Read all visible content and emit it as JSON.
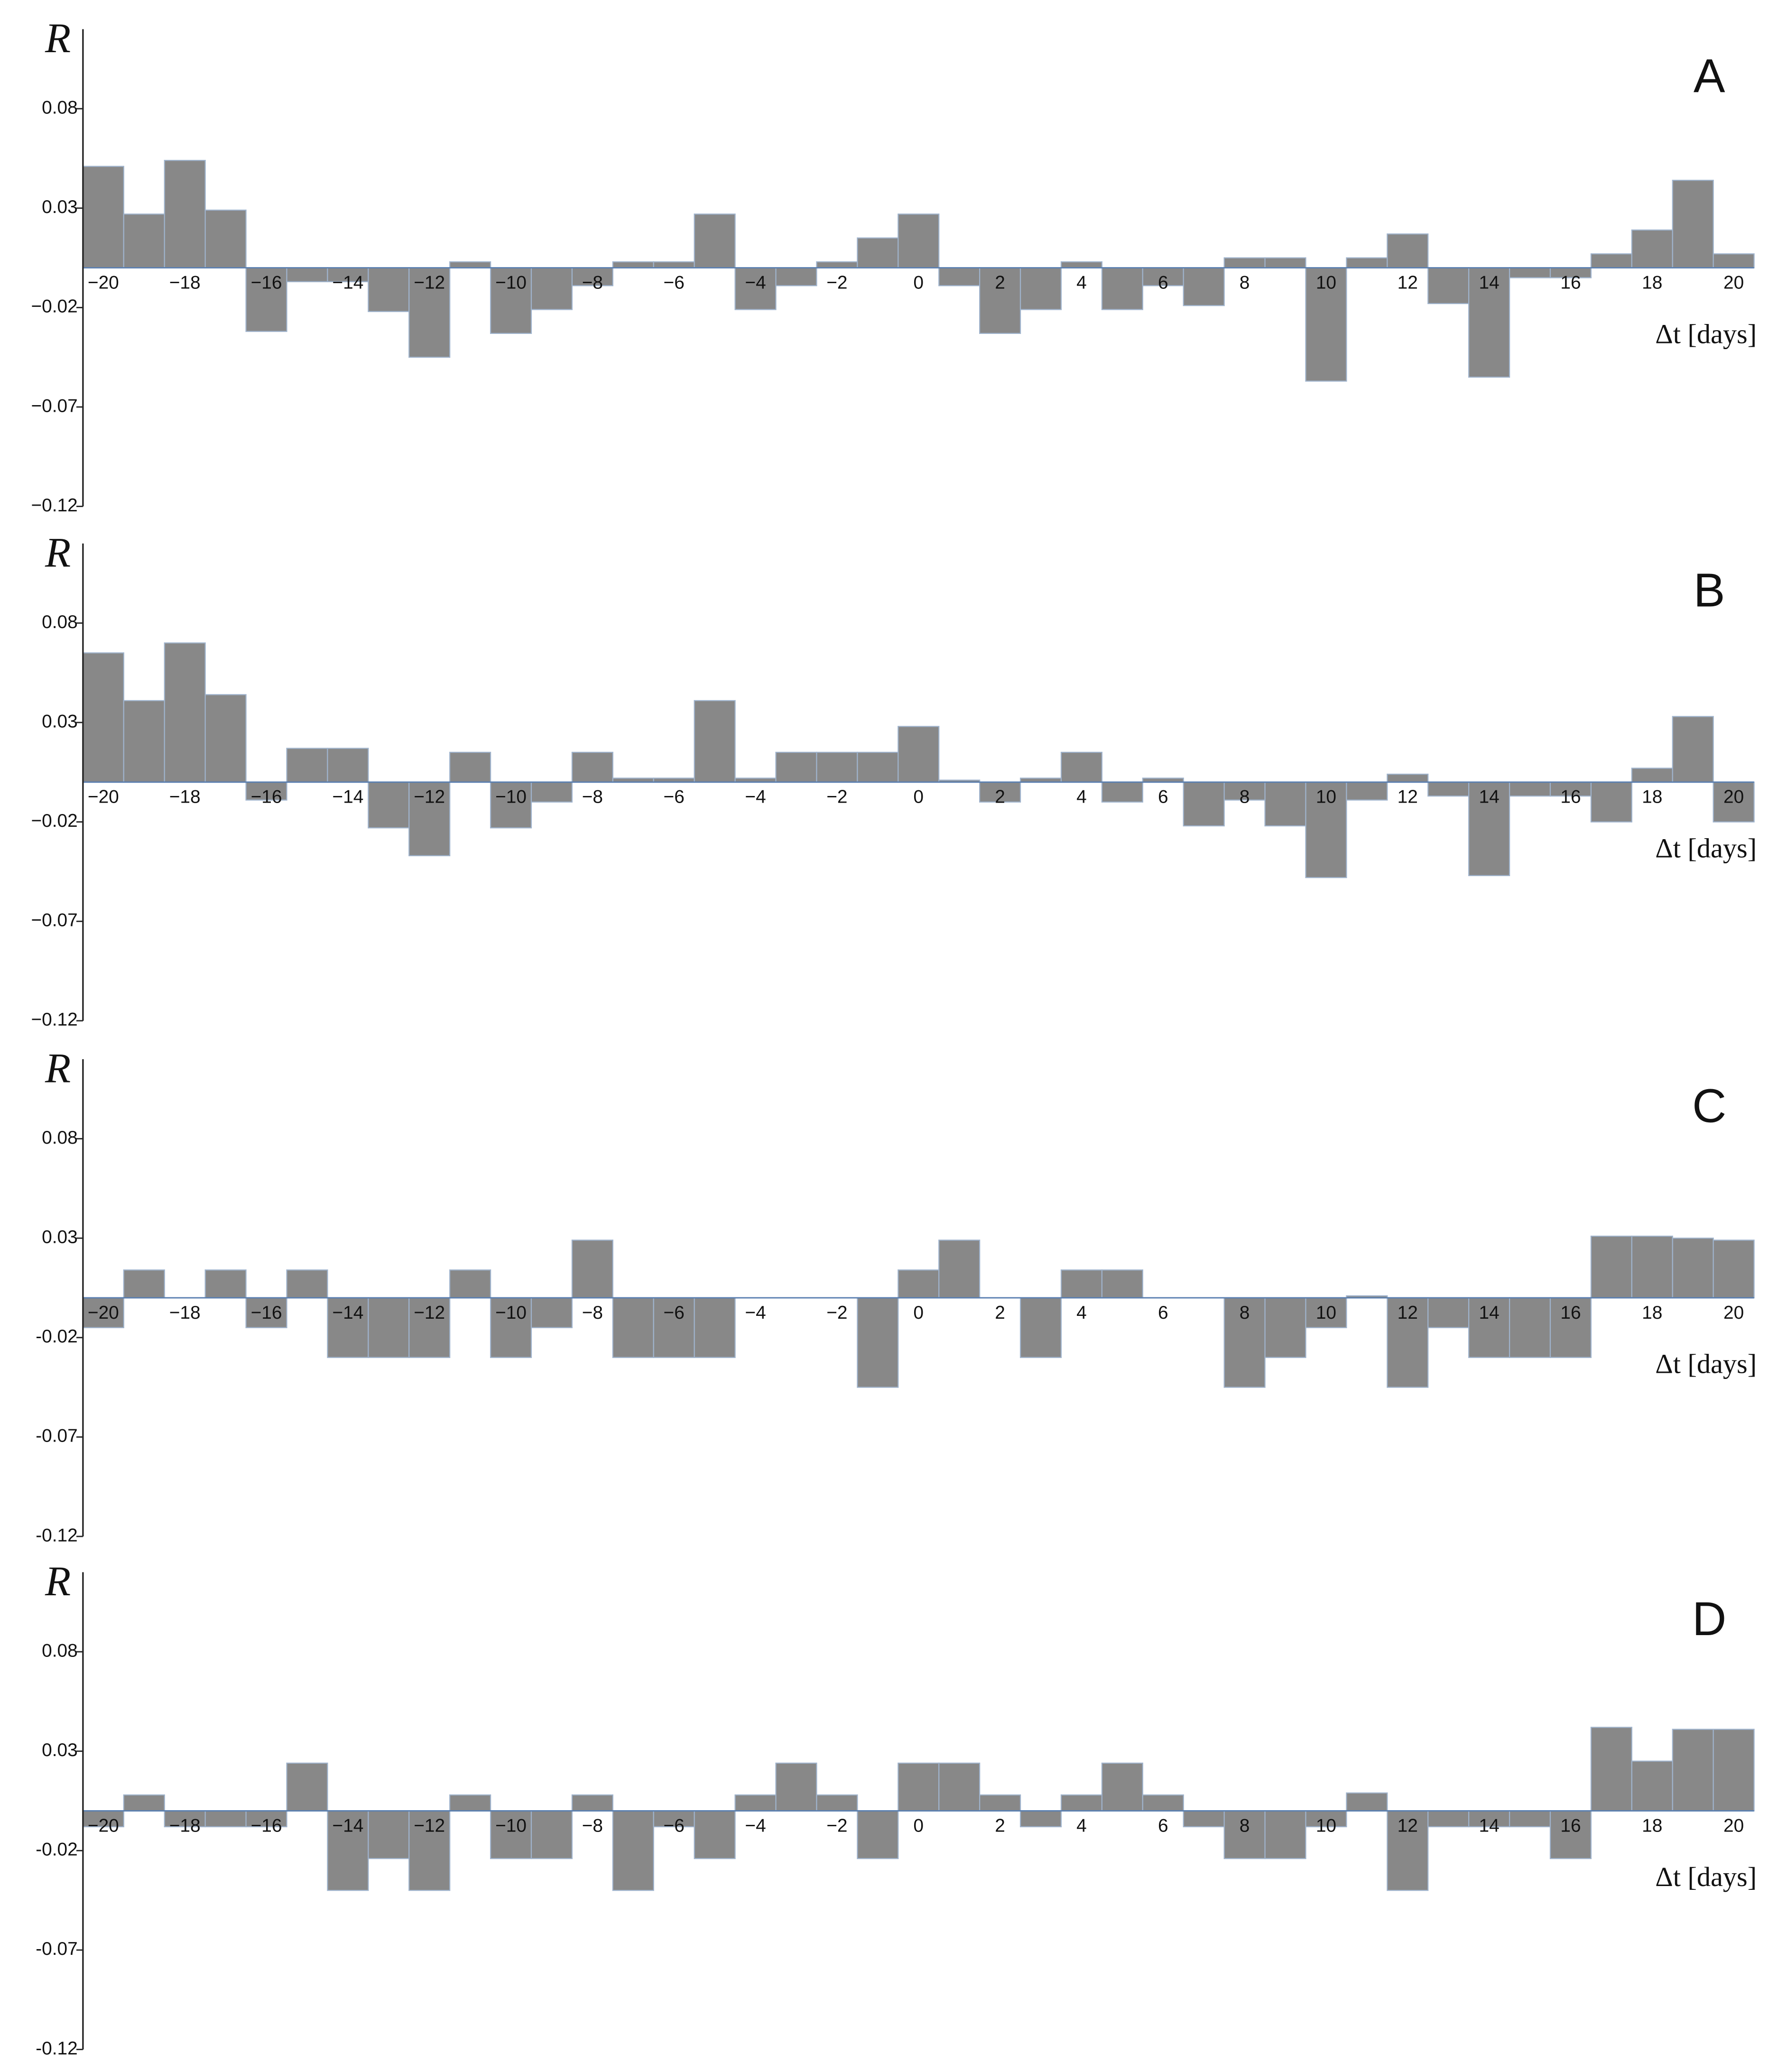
{
  "chart_data": [
    {
      "type": "bar",
      "panel_label": "A",
      "y_label": "R",
      "x_label": "Δt [days]",
      "color": "#888888",
      "x": [
        -20,
        -19,
        -18,
        -17,
        -16,
        -15,
        -14,
        -13,
        -12,
        -11,
        -10,
        -9,
        -8,
        -7,
        -6,
        -5,
        -4,
        -3,
        -2,
        -1,
        0,
        1,
        2,
        3,
        4,
        5,
        6,
        7,
        8,
        9,
        10,
        11,
        12,
        13,
        14,
        15,
        16,
        17,
        18,
        19,
        20
      ],
      "values": [
        0.051,
        0.027,
        0.054,
        0.029,
        -0.032,
        -0.007,
        -0.007,
        -0.022,
        -0.045,
        0.003,
        -0.033,
        -0.021,
        -0.009,
        0.003,
        0.003,
        0.027,
        -0.021,
        -0.009,
        0.003,
        0.015,
        0.027,
        -0.009,
        -0.033,
        -0.021,
        0.003,
        -0.021,
        -0.009,
        -0.019,
        0.005,
        0.005,
        -0.057,
        0.005,
        0.017,
        -0.018,
        -0.055,
        -0.005,
        -0.005,
        0.007,
        0.019,
        0.044,
        0.007
      ],
      "xlim": [
        -20.5,
        20.5
      ],
      "xticks": [
        {
          "value": -20,
          "label": "−20"
        },
        {
          "value": -18,
          "label": "−18"
        },
        {
          "value": -16,
          "label": "−16"
        },
        {
          "value": -14,
          "label": "−14"
        },
        {
          "value": -12,
          "label": "−12"
        },
        {
          "value": -10,
          "label": "−10"
        },
        {
          "value": -8,
          "label": "−8"
        },
        {
          "value": -6,
          "label": "−6"
        },
        {
          "value": -4,
          "label": "−4"
        },
        {
          "value": -2,
          "label": "−2"
        },
        0,
        2,
        4,
        6,
        8,
        10,
        12,
        14,
        16,
        18,
        20
      ],
      "ylim": [
        -0.12,
        0.12
      ],
      "yticks": [
        0.08,
        0.03,
        {
          "value": -0.02,
          "label": "−0.02"
        },
        {
          "value": -0.07,
          "label": "−0.07"
        },
        {
          "value": -0.12,
          "label": "−0.12"
        }
      ]
    },
    {
      "type": "bar",
      "panel_label": "B",
      "y_label": "R",
      "x_label": "Δt [days]",
      "color": "#888888",
      "x": [
        -20,
        -19,
        -18,
        -17,
        -16,
        -15,
        -14,
        -13,
        -12,
        -11,
        -10,
        -9,
        -8,
        -7,
        -6,
        -5,
        -4,
        -3,
        -2,
        -1,
        0,
        1,
        2,
        3,
        4,
        5,
        6,
        7,
        8,
        9,
        10,
        11,
        12,
        13,
        14,
        15,
        16,
        17,
        18,
        19,
        20
      ],
      "values": [
        0.065,
        0.041,
        0.07,
        0.044,
        -0.009,
        0.017,
        0.017,
        -0.023,
        -0.037,
        0.015,
        -0.023,
        -0.01,
        0.015,
        0.002,
        0.002,
        0.041,
        0.002,
        0.015,
        0.015,
        0.015,
        0.028,
        0.001,
        -0.01,
        0.002,
        0.015,
        -0.01,
        0.002,
        -0.022,
        -0.009,
        -0.022,
        -0.048,
        -0.009,
        0.004,
        -0.007,
        -0.047,
        -0.007,
        -0.007,
        -0.02,
        0.007,
        0.033,
        -0.02
      ],
      "xlim": [
        -20.5,
        20.5
      ],
      "xticks": [
        {
          "value": -20,
          "label": "−20"
        },
        {
          "value": -18,
          "label": "−18"
        },
        {
          "value": -16,
          "label": "−16"
        },
        {
          "value": -14,
          "label": "−14"
        },
        {
          "value": -12,
          "label": "−12"
        },
        {
          "value": -10,
          "label": "−10"
        },
        {
          "value": -8,
          "label": "−8"
        },
        {
          "value": -6,
          "label": "−6"
        },
        {
          "value": -4,
          "label": "−4"
        },
        {
          "value": -2,
          "label": "−2"
        },
        0,
        2,
        4,
        6,
        8,
        10,
        12,
        14,
        16,
        18,
        20
      ],
      "ylim": [
        -0.12,
        0.12
      ],
      "yticks": [
        0.08,
        0.03,
        {
          "value": -0.02,
          "label": "−0.02"
        },
        {
          "value": -0.07,
          "label": "−0.07"
        },
        {
          "value": -0.12,
          "label": "−0.12"
        }
      ]
    },
    {
      "type": "bar",
      "panel_label": "C",
      "y_label": "R",
      "x_label": "Δt [days]",
      "color": "#888888",
      "x": [
        -20,
        -19,
        -18,
        -17,
        -16,
        -15,
        -14,
        -13,
        -12,
        -11,
        -10,
        -9,
        -8,
        -7,
        -6,
        -5,
        -4,
        -3,
        -2,
        -1,
        0,
        1,
        2,
        3,
        4,
        5,
        6,
        7,
        8,
        9,
        10,
        11,
        12,
        13,
        14,
        15,
        16,
        17,
        18,
        19,
        20
      ],
      "values": [
        -0.015,
        0.014,
        0,
        0.014,
        -0.015,
        0.014,
        -0.03,
        -0.03,
        -0.03,
        0.014,
        -0.03,
        -0.015,
        0.029,
        -0.03,
        -0.03,
        -0.03,
        0,
        0,
        0,
        -0.045,
        0.014,
        0.029,
        0,
        -0.03,
        0.014,
        0.014,
        0,
        0,
        -0.045,
        -0.03,
        -0.015,
        0.001,
        -0.045,
        -0.015,
        -0.03,
        -0.03,
        -0.03,
        0.031,
        0.031,
        0.03,
        0.029
      ],
      "xlim": [
        -20.5,
        20.5
      ],
      "xticks": [
        {
          "value": -20,
          "label": "−20"
        },
        {
          "value": -18,
          "label": "−18"
        },
        {
          "value": -16,
          "label": "−16"
        },
        {
          "value": -14,
          "label": "−14"
        },
        {
          "value": -12,
          "label": "−12"
        },
        {
          "value": -10,
          "label": "−10"
        },
        {
          "value": -8,
          "label": "−8"
        },
        {
          "value": -6,
          "label": "−6"
        },
        {
          "value": -4,
          "label": "−4"
        },
        {
          "value": -2,
          "label": "−2"
        },
        0,
        2,
        4,
        6,
        8,
        10,
        12,
        14,
        16,
        18,
        20
      ],
      "ylim": [
        -0.12,
        0.12
      ],
      "yticks": [
        0.08,
        0.03,
        -0.02,
        -0.07,
        -0.12
      ]
    },
    {
      "type": "bar",
      "panel_label": "D",
      "y_label": "R",
      "x_label": "Δt [days]",
      "color": "#888888",
      "x": [
        -20,
        -19,
        -18,
        -17,
        -16,
        -15,
        -14,
        -13,
        -12,
        -11,
        -10,
        -9,
        -8,
        -7,
        -6,
        -5,
        -4,
        -3,
        -2,
        -1,
        0,
        1,
        2,
        3,
        4,
        5,
        6,
        7,
        8,
        9,
        10,
        11,
        12,
        13,
        14,
        15,
        16,
        17,
        18,
        19,
        20
      ],
      "values": [
        -0.008,
        0.008,
        -0.008,
        -0.008,
        -0.008,
        0.024,
        -0.04,
        -0.024,
        -0.04,
        0.008,
        -0.024,
        -0.024,
        0.008,
        -0.04,
        -0.008,
        -0.024,
        0.008,
        0.024,
        0.008,
        -0.024,
        0.024,
        0.024,
        0.008,
        -0.008,
        0.008,
        0.024,
        0.008,
        -0.008,
        -0.024,
        -0.024,
        -0.008,
        0.009,
        -0.04,
        -0.008,
        -0.008,
        -0.008,
        -0.024,
        0.042,
        0.025,
        0.041,
        0.041
      ],
      "xlim": [
        -20.5,
        20.5
      ],
      "xticks": [
        {
          "value": -20,
          "label": "−20"
        },
        {
          "value": -18,
          "label": "−18"
        },
        {
          "value": -16,
          "label": "−16"
        },
        {
          "value": -14,
          "label": "−14"
        },
        {
          "value": -12,
          "label": "−12"
        },
        {
          "value": -10,
          "label": "−10"
        },
        {
          "value": -8,
          "label": "−8"
        },
        {
          "value": -6,
          "label": "−6"
        },
        {
          "value": -4,
          "label": "−4"
        },
        {
          "value": -2,
          "label": "−2"
        },
        0,
        2,
        4,
        6,
        8,
        10,
        12,
        14,
        16,
        18,
        20
      ],
      "ylim": [
        -0.12,
        0.12
      ],
      "yticks": [
        0.08,
        0.03,
        -0.02,
        -0.07,
        -0.12
      ]
    }
  ]
}
